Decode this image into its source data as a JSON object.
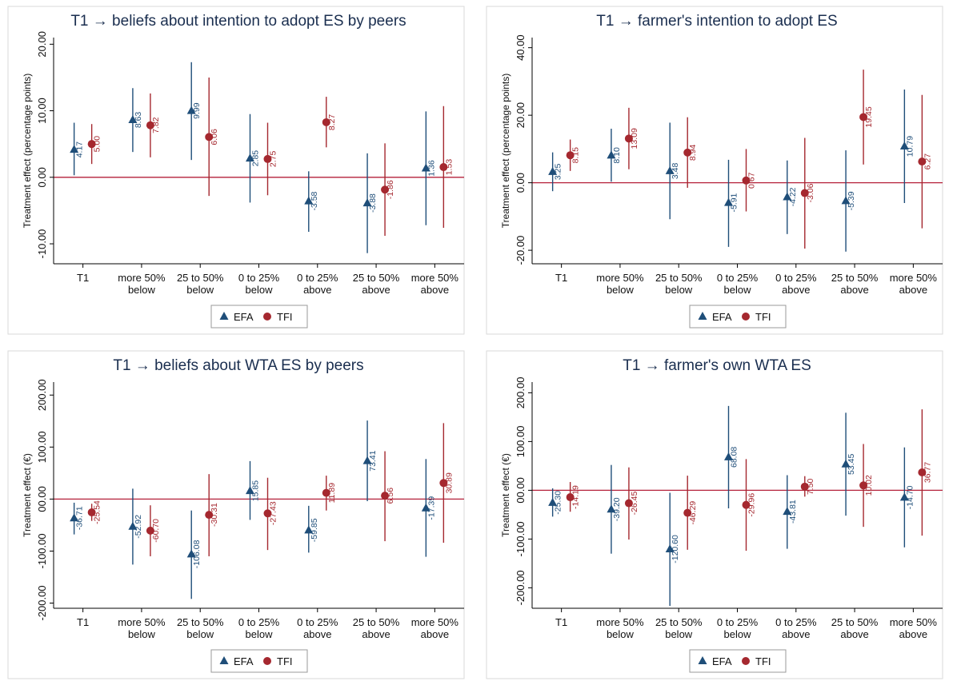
{
  "colors": {
    "efa": "#1f4e79",
    "tfi": "#a5282f",
    "zero_line": "#b5213a",
    "frame": "#dadada",
    "axis": "#000000"
  },
  "chart_data": [
    {
      "type": "scatter",
      "title": "T1 → beliefs about intention to adopt ES by peers",
      "ylabel": "Treatment effect (percentage points)",
      "xlabel": "",
      "ylim": [
        -13,
        21
      ],
      "yticks": [
        -10,
        0,
        10,
        20
      ],
      "ytick_labels": [
        "-10.00",
        "0.00",
        "10.00",
        "20.00"
      ],
      "categories": [
        [
          "T1"
        ],
        [
          "more 50%",
          "below"
        ],
        [
          "25 to 50%",
          "below"
        ],
        [
          "0 to 25%",
          "below"
        ],
        [
          "0 to 25%",
          "above"
        ],
        [
          "25 to 50%",
          "above"
        ],
        [
          "more 50%",
          "above"
        ]
      ],
      "legend": [
        "EFA",
        "TFI"
      ],
      "series": [
        {
          "name": "EFA",
          "marker": "triangle",
          "values": [
            4.17,
            8.63,
            9.99,
            2.85,
            -3.58,
            -3.88,
            1.36
          ],
          "labels": [
            "4.17",
            "8.63",
            "9.99",
            "2.85",
            "-3.58",
            "-3.88",
            "1.36"
          ],
          "ci_low": [
            0.3,
            3.8,
            2.6,
            -3.8,
            -8.2,
            -11.4,
            -7.2
          ],
          "ci_high": [
            8.2,
            13.4,
            17.3,
            9.5,
            0.9,
            3.6,
            9.9
          ]
        },
        {
          "name": "TFI",
          "marker": "circle",
          "values": [
            5.0,
            7.82,
            6.06,
            2.75,
            8.27,
            -1.86,
            1.53
          ],
          "labels": [
            "5.00",
            "7.82",
            "6.06",
            "2.75",
            "8.27",
            "-1.86",
            "1.53"
          ],
          "ci_low": [
            2.0,
            3.0,
            -2.8,
            -2.7,
            4.5,
            -8.8,
            -7.6
          ],
          "ci_high": [
            8.0,
            12.6,
            15.0,
            8.2,
            12.1,
            5.1,
            10.7
          ]
        }
      ]
    },
    {
      "type": "scatter",
      "title": "T1 → farmer's intention to adopt  ES",
      "ylabel": "Treatment effect (percentage points)",
      "xlabel": "",
      "ylim": [
        -24,
        43
      ],
      "yticks": [
        -20,
        0,
        20,
        40
      ],
      "ytick_labels": [
        "-20.00",
        "0.00",
        "20.00",
        "40.00"
      ],
      "categories": [
        [
          "T1"
        ],
        [
          "more 50%",
          "below"
        ],
        [
          "25 to 50%",
          "below"
        ],
        [
          "0 to 25%",
          "below"
        ],
        [
          "0 to 25%",
          "above"
        ],
        [
          "25 to 50%",
          "above"
        ],
        [
          "more 50%",
          "above"
        ]
      ],
      "legend": [
        "EFA",
        "TFI"
      ],
      "series": [
        {
          "name": "EFA",
          "marker": "triangle",
          "values": [
            3.25,
            8.1,
            3.48,
            -5.91,
            -4.22,
            -5.39,
            10.79
          ],
          "labels": [
            "3.25",
            "8.10",
            "3.48",
            "-5.91",
            "-4.22",
            "-5.39",
            "10.79"
          ],
          "ci_low": [
            -2.5,
            0.3,
            -10.8,
            -19.0,
            -15.2,
            -20.4,
            -6.0
          ],
          "ci_high": [
            9.0,
            16.0,
            17.8,
            6.8,
            6.6,
            9.6,
            27.6
          ]
        },
        {
          "name": "TFI",
          "marker": "circle",
          "values": [
            8.15,
            13.09,
            8.94,
            0.67,
            -3.06,
            19.45,
            6.27
          ],
          "labels": [
            "8.15",
            "13.09",
            "8.94",
            "0.67",
            "-3.06",
            "19.45",
            "6.27"
          ],
          "ci_low": [
            3.5,
            4.0,
            -1.5,
            -8.5,
            -19.5,
            5.4,
            -13.5
          ],
          "ci_high": [
            12.8,
            22.2,
            19.4,
            10.0,
            13.3,
            33.5,
            26.0
          ]
        }
      ]
    },
    {
      "type": "scatter",
      "title": "T1 → beliefs about WTA ES by  peers",
      "ylabel": "Treatment effect (€)",
      "xlabel": "",
      "ylim": [
        -210,
        225
      ],
      "yticks": [
        -200,
        -100,
        0,
        100,
        200
      ],
      "ytick_labels": [
        "-200.00",
        "-100.00",
        "00.00",
        "100.00",
        "200.00"
      ],
      "categories": [
        [
          "T1"
        ],
        [
          "more 50%",
          "below"
        ],
        [
          "25 to 50%",
          "below"
        ],
        [
          "0 to 25%",
          "below"
        ],
        [
          "0 to 25%",
          "above"
        ],
        [
          "25 to 50%",
          "above"
        ],
        [
          "more 50%",
          "above"
        ]
      ],
      "legend": [
        "EFA",
        "TFI"
      ],
      "series": [
        {
          "name": "EFA",
          "marker": "triangle",
          "values": [
            -36.71,
            -52.92,
            -106.08,
            15.85,
            -59.85,
            73.41,
            -17.39
          ],
          "labels": [
            "-36.71",
            "-52.92",
            "-106.08",
            "15.85",
            "-59.85",
            "73.41",
            "-17.39"
          ],
          "ci_low": [
            -68,
            -126,
            -192,
            -40,
            -103,
            -4,
            -111
          ],
          "ci_high": [
            -7,
            20,
            -22,
            73,
            -13,
            151,
            77
          ]
        },
        {
          "name": "TFI",
          "marker": "circle",
          "values": [
            -25.54,
            -60.7,
            -30.31,
            -27.43,
            11.89,
            6.56,
            30.89
          ],
          "labels": [
            "-25.54",
            "-60.70",
            "-30.31",
            "-27.43",
            "11.89",
            "6.56",
            "30.89"
          ],
          "ci_low": [
            -42,
            -110,
            -110,
            -98,
            -22,
            -81,
            -84
          ],
          "ci_high": [
            -9,
            -12,
            48,
            41,
            45,
            92,
            146
          ]
        }
      ]
    },
    {
      "type": "scatter",
      "title": "T1 → farmer's own WTA ES",
      "ylabel": "Treatment effect (€)",
      "xlabel": "",
      "ylim": [
        -242,
        222
      ],
      "yticks": [
        -200,
        -100,
        0,
        100,
        200
      ],
      "ytick_labels": [
        "-200.00",
        "-100.00",
        "00.00",
        "100.00",
        "200.00"
      ],
      "categories": [
        [
          "T1"
        ],
        [
          "more 50%",
          "below"
        ],
        [
          "25 to 50%",
          "below"
        ],
        [
          "0 to 25%",
          "below"
        ],
        [
          "0 to 25%",
          "above"
        ],
        [
          "25 to 50%",
          "above"
        ],
        [
          "more 50%",
          "above"
        ]
      ],
      "legend": [
        "EFA",
        "TFI"
      ],
      "series": [
        {
          "name": "EFA",
          "marker": "triangle",
          "values": [
            -25.3,
            -39.2,
            -120.6,
            68.08,
            -43.81,
            53.45,
            -14.7
          ],
          "labels": [
            "-25.30",
            "-39.20",
            "-120.60",
            "68.08",
            "-43.81",
            "53.45",
            "-14.70"
          ],
          "ci_low": [
            -54,
            -130,
            -237,
            -37,
            -120,
            -52,
            -117
          ],
          "ci_high": [
            4,
            52,
            -5,
            173,
            31,
            159,
            88
          ]
        },
        {
          "name": "TFI",
          "marker": "circle",
          "values": [
            -14.19,
            -26.45,
            -46.29,
            -29.96,
            7.5,
            10.02,
            36.77
          ],
          "labels": [
            "-14.19",
            "-26.45",
            "-46.29",
            "-29.96",
            "7.50",
            "10.02",
            "36.77"
          ],
          "ci_low": [
            -44,
            -101,
            -122,
            -124,
            -13,
            -75,
            -93
          ],
          "ci_high": [
            17,
            47,
            30,
            64,
            29,
            95,
            166
          ]
        }
      ]
    }
  ]
}
